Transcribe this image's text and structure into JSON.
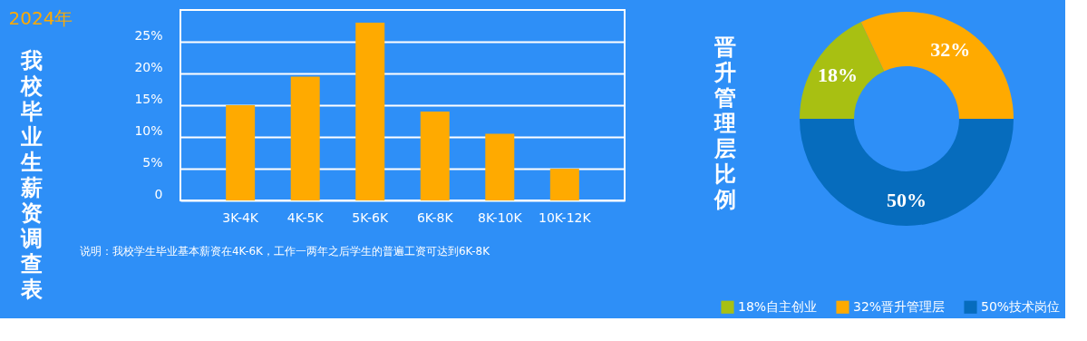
{
  "chart_data": [
    {
      "type": "bar",
      "title": "我校毕业生薪资调查表",
      "subtitle": "2024年",
      "categories": [
        "3K-4K",
        "4K-5K",
        "5K-6K",
        "6K-8K",
        "8K-10K",
        "10K-12K"
      ],
      "values": [
        15,
        19.5,
        28,
        14,
        10.5,
        5
      ],
      "color": "#ffaa00",
      "ylim": [
        0,
        30
      ],
      "yticks": [
        0,
        {
          "value": 5,
          "label": "5%"
        },
        {
          "value": 10,
          "label": "10%"
        },
        {
          "value": 15,
          "label": "15%"
        },
        {
          "value": 20,
          "label": "20%"
        },
        {
          "value": 25,
          "label": "25%"
        }
      ],
      "grid": "y",
      "annotations": [
        "说明：我校学生毕业基本薪资在4K-6K，工作一两年之后学生的普遍工资可达到6K-8K"
      ]
    },
    {
      "type": "donut",
      "title": "晋升管理层比例",
      "categories": [
        "18%自主创业",
        "32%晋升管理层",
        "50%技术岗位"
      ],
      "values": [
        18,
        32,
        50
      ],
      "colors": [
        "#a8c012",
        "#ffaa00",
        "#066cbd"
      ],
      "value_labels": [
        "18%",
        "32%",
        "50%"
      ],
      "legend": "bottom"
    }
  ]
}
